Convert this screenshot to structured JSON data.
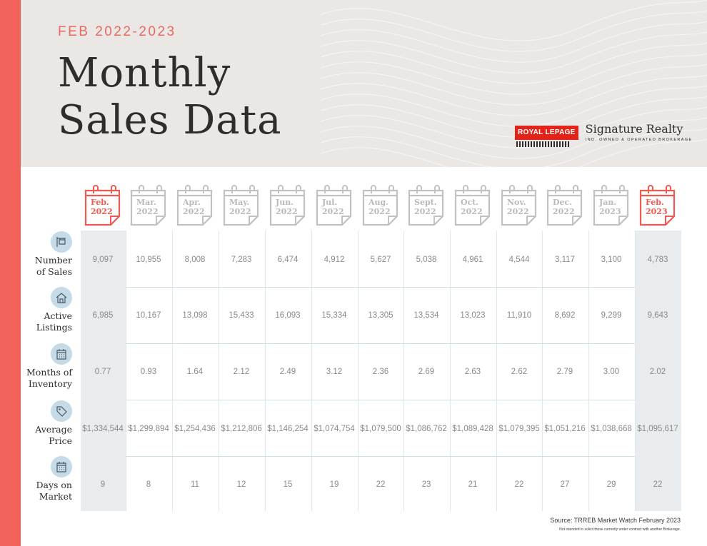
{
  "header": {
    "kicker": "FEB 2022-2023",
    "title_line1": "Monthly",
    "title_line2": "Sales Data"
  },
  "logo": {
    "brand": "ROYAL LEPAGE",
    "name": "Signature Realty",
    "tagline": "IND. OWNED & OPERATED BROKERAGE"
  },
  "months": [
    {
      "line1": "Feb.",
      "line2": "2022",
      "highlight": true
    },
    {
      "line1": "Mar.",
      "line2": "2022",
      "highlight": false
    },
    {
      "line1": "Apr.",
      "line2": "2022",
      "highlight": false
    },
    {
      "line1": "May.",
      "line2": "2022",
      "highlight": false
    },
    {
      "line1": "Jun.",
      "line2": "2022",
      "highlight": false
    },
    {
      "line1": "Jul.",
      "line2": "2022",
      "highlight": false
    },
    {
      "line1": "Aug.",
      "line2": "2022",
      "highlight": false
    },
    {
      "line1": "Sept.",
      "line2": "2022",
      "highlight": false
    },
    {
      "line1": "Oct.",
      "line2": "2022",
      "highlight": false
    },
    {
      "line1": "Nov.",
      "line2": "2022",
      "highlight": false
    },
    {
      "line1": "Dec.",
      "line2": "2022",
      "highlight": false
    },
    {
      "line1": "Jan.",
      "line2": "2023",
      "highlight": false
    },
    {
      "line1": "Feb.",
      "line2": "2023",
      "highlight": true
    }
  ],
  "rows": [
    {
      "label1": "Number",
      "label2": "of Sales",
      "icon": "sign-icon",
      "values": [
        "9,097",
        "10,955",
        "8,008",
        "7,283",
        "6,474",
        "4,912",
        "5,627",
        "5,038",
        "4,961",
        "4,544",
        "3,117",
        "3,100",
        "4,783"
      ]
    },
    {
      "label1": "Active",
      "label2": "Listings",
      "icon": "house-icon",
      "values": [
        "6,985",
        "10,167",
        "13,098",
        "15,433",
        "16,093",
        "15,334",
        "13,305",
        "13,534",
        "13,023",
        "11,910",
        "8,692",
        "9,299",
        "9,643"
      ]
    },
    {
      "label1": "Months of",
      "label2": "Inventory",
      "icon": "calendar-icon",
      "values": [
        "0.77",
        "0.93",
        "1.64",
        "2.12",
        "2.49",
        "3.12",
        "2.36",
        "2.69",
        "2.63",
        "2.62",
        "2.79",
        "3.00",
        "2.02"
      ]
    },
    {
      "label1": "Average",
      "label2": "Price",
      "icon": "price-tag-icon",
      "values": [
        "$1,334,544",
        "$1,299,894",
        "$1,254,436",
        "$1,212,806",
        "$1,146,254",
        "$1,074,754",
        "$1,079,500",
        "$1,086,762",
        "$1,089,428",
        "$1,079,395",
        "$1,051,216",
        "$1,038,668",
        "$1,095,617"
      ]
    },
    {
      "label1": "Days on",
      "label2": "Market",
      "icon": "calendar-icon",
      "values": [
        "9",
        "8",
        "11",
        "12",
        "15",
        "19",
        "22",
        "23",
        "21",
        "22",
        "27",
        "29",
        "22"
      ]
    }
  ],
  "footer": {
    "source": "Source: TRREB Market Watch February 2023",
    "disclaimer": "Not intended to solicit those currently under contract with another Brokerage."
  },
  "colors": {
    "accent": "#f0625a",
    "highlight_column": "#e8ecee",
    "icon_circle": "#c5dbe8"
  }
}
